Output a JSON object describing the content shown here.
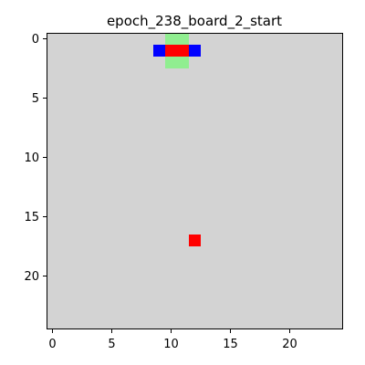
{
  "title": "epoch_238_board_2_start",
  "board": {
    "rows": 25,
    "cols": 25,
    "background": "#d3d3d3",
    "palette": {
      "green": "#90ee90",
      "blue": "#0000ff",
      "red": "#ff0000"
    },
    "cells": [
      {
        "name": "cell-green-0-10",
        "row": 0,
        "col": 10,
        "color": "green"
      },
      {
        "name": "cell-green-0-11",
        "row": 0,
        "col": 11,
        "color": "green"
      },
      {
        "name": "cell-blue-1-9",
        "row": 1,
        "col": 9,
        "color": "blue"
      },
      {
        "name": "cell-red-1-10",
        "row": 1,
        "col": 10,
        "color": "red"
      },
      {
        "name": "cell-red-1-11",
        "row": 1,
        "col": 11,
        "color": "red"
      },
      {
        "name": "cell-blue-1-12",
        "row": 1,
        "col": 12,
        "color": "blue"
      },
      {
        "name": "cell-green-2-10",
        "row": 2,
        "col": 10,
        "color": "green"
      },
      {
        "name": "cell-green-2-11",
        "row": 2,
        "col": 11,
        "color": "green"
      },
      {
        "name": "cell-red-17-12",
        "row": 17,
        "col": 12,
        "color": "red"
      }
    ]
  },
  "x_ticks": [
    0,
    5,
    10,
    15,
    20
  ],
  "y_ticks": [
    0,
    5,
    10,
    15,
    20
  ]
}
